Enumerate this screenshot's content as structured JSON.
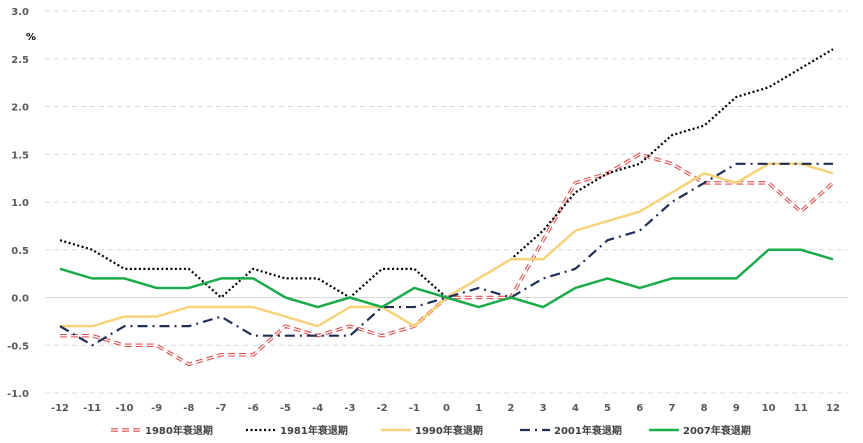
{
  "chart_data": {
    "type": "line",
    "title": "",
    "xlabel": "",
    "ylabel": "",
    "y_unit": "%",
    "x": [
      -12,
      -11,
      -10,
      -9,
      -8,
      -7,
      -6,
      -5,
      -4,
      -3,
      -2,
      -1,
      0,
      1,
      2,
      3,
      4,
      5,
      6,
      7,
      8,
      9,
      10,
      11,
      12
    ],
    "x_tick_labels": [
      "-12",
      "-11",
      "-10",
      "-9",
      "-8",
      "-7",
      "-6",
      "-5",
      "-4",
      "-3",
      "-2",
      "-1",
      "0",
      "1",
      "2",
      "3",
      "4",
      "5",
      "6",
      "7",
      "8",
      "9",
      "10",
      "11",
      "12"
    ],
    "y_ticks": [
      -1.0,
      -0.5,
      0.0,
      0.5,
      1.0,
      1.5,
      2.0,
      2.5,
      3.0
    ],
    "y_tick_labels": [
      "-1.0",
      "-0.5",
      "0.0",
      "0.5",
      "1.0",
      "1.5",
      "2.0",
      "2.5",
      "3.0"
    ],
    "ylim": [
      -1.0,
      3.0
    ],
    "grid": "horizontal-dashed",
    "legend_position": "bottom",
    "series": [
      {
        "name": "1980年衰退期",
        "color": "#e05050",
        "style": "double-dashed",
        "values": [
          -0.4,
          -0.4,
          -0.5,
          -0.5,
          -0.7,
          -0.6,
          -0.6,
          -0.3,
          -0.4,
          -0.3,
          -0.4,
          -0.3,
          0.0,
          0.0,
          0.0,
          0.6,
          1.2,
          1.3,
          1.5,
          1.4,
          1.2,
          1.2,
          1.2,
          0.9,
          1.2
        ]
      },
      {
        "name": "1981年衰退期",
        "color": "#000000",
        "style": "dotted",
        "values": [
          0.6,
          0.5,
          0.3,
          0.3,
          0.3,
          0.0,
          0.3,
          0.2,
          0.2,
          0.0,
          0.3,
          0.3,
          0.0,
          0.2,
          0.4,
          0.7,
          1.1,
          1.3,
          1.4,
          1.7,
          1.8,
          2.1,
          2.2,
          2.4,
          2.6
        ]
      },
      {
        "name": "1990年衰退期",
        "color": "#f7d27a",
        "style": "solid",
        "values": [
          -0.3,
          -0.3,
          -0.2,
          -0.2,
          -0.1,
          -0.1,
          -0.1,
          -0.2,
          -0.3,
          -0.1,
          -0.1,
          -0.3,
          0.0,
          0.2,
          0.4,
          0.4,
          0.7,
          0.8,
          0.9,
          1.1,
          1.3,
          1.2,
          1.4,
          1.4,
          1.3
        ]
      },
      {
        "name": "2001年衰退期",
        "color": "#1f2f55",
        "style": "dash-dot",
        "values": [
          -0.3,
          -0.5,
          -0.3,
          -0.3,
          -0.3,
          -0.2,
          -0.4,
          -0.4,
          -0.4,
          -0.4,
          -0.1,
          -0.1,
          0.0,
          0.1,
          0.0,
          0.2,
          0.3,
          0.6,
          0.7,
          1.0,
          1.2,
          1.4,
          1.4,
          1.4,
          1.4
        ]
      },
      {
        "name": "2007年衰退期",
        "color": "#1aab4a",
        "style": "solid",
        "values": [
          0.3,
          0.2,
          0.2,
          0.1,
          0.1,
          0.2,
          0.2,
          0.0,
          -0.1,
          0.0,
          -0.1,
          0.1,
          0.0,
          -0.1,
          0.0,
          -0.1,
          0.1,
          0.2,
          0.1,
          0.2,
          0.2,
          0.2,
          0.5,
          0.5,
          0.4
        ]
      }
    ]
  }
}
